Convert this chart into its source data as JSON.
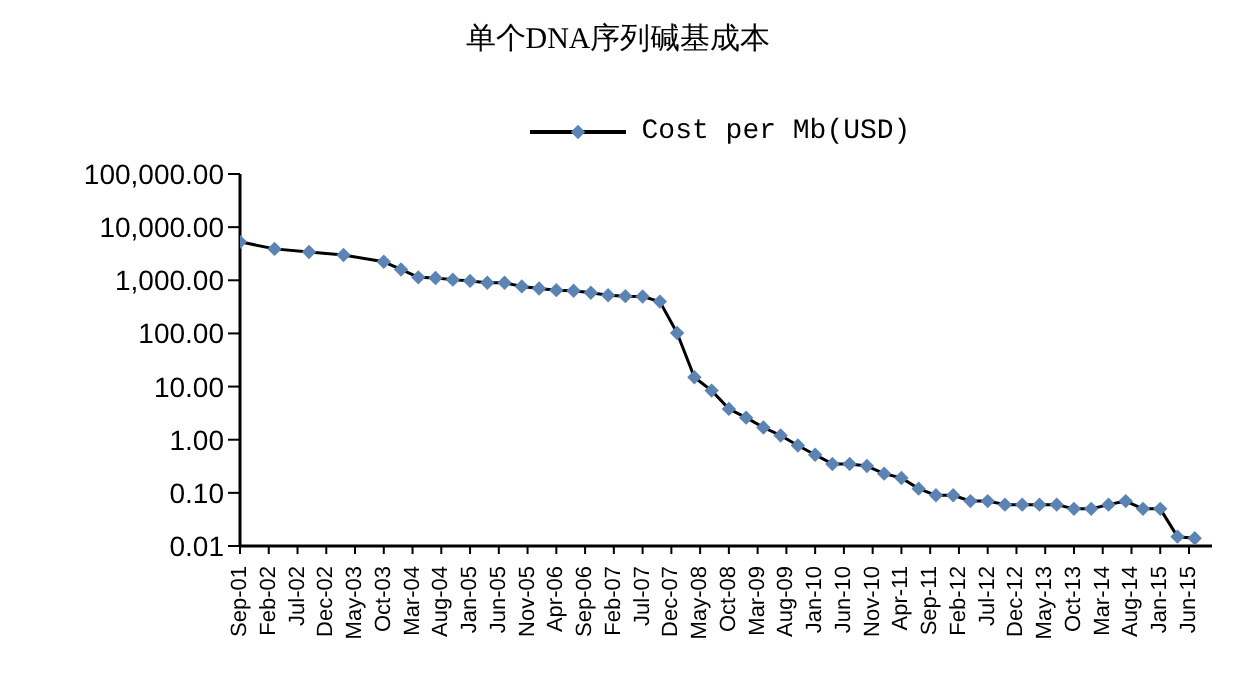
{
  "chart_data": {
    "type": "line",
    "title": "单个DNA序列碱基成本",
    "x": [
      "2001-09",
      "2002-03",
      "2002-09",
      "2003-03",
      "2003-10",
      "2004-01",
      "2004-04",
      "2004-07",
      "2004-10",
      "2005-01",
      "2005-04",
      "2005-07",
      "2005-10",
      "2006-01",
      "2006-04",
      "2006-07",
      "2006-10",
      "2007-01",
      "2007-04",
      "2007-07",
      "2007-10",
      "2008-01",
      "2008-04",
      "2008-07",
      "2008-10",
      "2009-01",
      "2009-04",
      "2009-07",
      "2009-10",
      "2010-01",
      "2010-04",
      "2010-07",
      "2010-10",
      "2011-01",
      "2011-04",
      "2011-07",
      "2011-10",
      "2012-01",
      "2012-04",
      "2012-07",
      "2012-10",
      "2013-01",
      "2013-04",
      "2013-07",
      "2013-10",
      "2014-01",
      "2014-04",
      "2014-07",
      "2014-10",
      "2015-01",
      "2015-04",
      "2015-07"
    ],
    "series": [
      {
        "name": "Cost per Mb(USD)",
        "color": "#5b84b4",
        "values": [
          5292,
          3899,
          3414,
          2986,
          2231,
          1599,
          1136,
          1107,
          1029,
          974,
          898,
          899,
          767,
          699,
          652,
          636,
          582,
          523,
          503,
          496,
          397,
          102,
          15,
          8.4,
          3.8,
          2.6,
          1.7,
          1.2,
          0.78,
          0.52,
          0.35,
          0.35,
          0.32,
          0.23,
          0.19,
          0.12,
          0.09,
          0.09,
          0.07,
          0.07,
          0.06,
          0.06,
          0.06,
          0.06,
          0.05,
          0.05,
          0.06,
          0.07,
          0.05,
          0.05,
          0.015,
          0.014
        ]
      }
    ],
    "xlim": [
      "2001-09",
      "2015-10"
    ],
    "xticks": [
      {
        "value": "2001-09",
        "label": "Sep-01"
      },
      {
        "value": "2002-02",
        "label": "Feb-02"
      },
      {
        "value": "2002-07",
        "label": "Jul-02"
      },
      {
        "value": "2002-12",
        "label": "Dec-02"
      },
      {
        "value": "2003-05",
        "label": "May-03"
      },
      {
        "value": "2003-10",
        "label": "Oct-03"
      },
      {
        "value": "2004-03",
        "label": "Mar-04"
      },
      {
        "value": "2004-08",
        "label": "Aug-04"
      },
      {
        "value": "2005-01",
        "label": "Jan-05"
      },
      {
        "value": "2005-06",
        "label": "Jun-05"
      },
      {
        "value": "2005-11",
        "label": "Nov-05"
      },
      {
        "value": "2006-04",
        "label": "Apr-06"
      },
      {
        "value": "2006-09",
        "label": "Sep-06"
      },
      {
        "value": "2007-02",
        "label": "Feb-07"
      },
      {
        "value": "2007-07",
        "label": "Jul-07"
      },
      {
        "value": "2007-12",
        "label": "Dec-07"
      },
      {
        "value": "2008-05",
        "label": "May-08"
      },
      {
        "value": "2008-10",
        "label": "Oct-08"
      },
      {
        "value": "2009-03",
        "label": "Mar-09"
      },
      {
        "value": "2009-08",
        "label": "Aug-09"
      },
      {
        "value": "2010-01",
        "label": "Jan-10"
      },
      {
        "value": "2010-06",
        "label": "Jun-10"
      },
      {
        "value": "2010-11",
        "label": "Nov-10"
      },
      {
        "value": "2011-04",
        "label": "Apr-11"
      },
      {
        "value": "2011-09",
        "label": "Sep-11"
      },
      {
        "value": "2012-02",
        "label": "Feb-12"
      },
      {
        "value": "2012-07",
        "label": "Jul-12"
      },
      {
        "value": "2012-12",
        "label": "Dec-12"
      },
      {
        "value": "2013-05",
        "label": "May-13"
      },
      {
        "value": "2013-10",
        "label": "Oct-13"
      },
      {
        "value": "2014-03",
        "label": "Mar-14"
      },
      {
        "value": "2014-08",
        "label": "Aug-14"
      },
      {
        "value": "2015-01",
        "label": "Jan-15"
      },
      {
        "value": "2015-06",
        "label": "Jun-15"
      }
    ],
    "ylim": [
      0.01,
      100000
    ],
    "yticks": [
      {
        "value": 0.01,
        "label": "0.01"
      },
      {
        "value": 0.1,
        "label": "0.10"
      },
      {
        "value": 1,
        "label": "1.00"
      },
      {
        "value": 10,
        "label": "10.00"
      },
      {
        "value": 100,
        "label": "100.00"
      },
      {
        "value": 1000,
        "label": "1,000.00"
      },
      {
        "value": 10000,
        "label": "10,000.00"
      },
      {
        "value": 100000,
        "label": "100,000.00"
      }
    ],
    "log": "y",
    "grid": false,
    "legend": "top",
    "marker": "diamond",
    "line_style": "solid"
  }
}
